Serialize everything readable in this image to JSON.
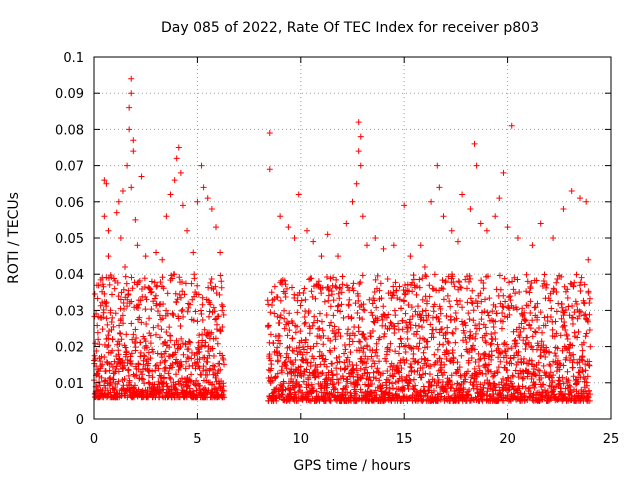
{
  "chart_data": {
    "type": "scatter",
    "title": "Day 085 of 2022, Rate Of TEC Index for receiver p803",
    "xlabel": "GPS time / hours",
    "ylabel": "ROTI / TECUs",
    "xlim": [
      0,
      25
    ],
    "ylim": [
      0,
      0.1
    ],
    "xticks": [
      {
        "value": 0,
        "label": "0"
      },
      {
        "value": 5,
        "label": "5"
      },
      {
        "value": 10,
        "label": "10"
      },
      {
        "value": 15,
        "label": "15"
      },
      {
        "value": 20,
        "label": "20"
      },
      {
        "value": 25,
        "label": "25"
      }
    ],
    "yticks": [
      {
        "value": 0,
        "label": "0"
      },
      {
        "value": 0.01,
        "label": "0.01"
      },
      {
        "value": 0.02,
        "label": "0.02"
      },
      {
        "value": 0.03,
        "label": "0.03"
      },
      {
        "value": 0.04,
        "label": "0.04"
      },
      {
        "value": 0.05,
        "label": "0.05"
      },
      {
        "value": 0.06,
        "label": "0.06"
      },
      {
        "value": 0.07,
        "label": "0.07"
      },
      {
        "value": 0.08,
        "label": "0.08"
      },
      {
        "value": 0.09,
        "label": "0.09"
      },
      {
        "value": 0.1,
        "label": "0.1"
      }
    ],
    "grid": true,
    "marker": "+",
    "marker_color": "#ff0000",
    "series": [
      {
        "points": [
          [
            0.1,
            0.012
          ],
          [
            0.2,
            0.022
          ],
          [
            0.3,
            0.028
          ],
          [
            0.3,
            0.016
          ],
          [
            0.4,
            0.039
          ],
          [
            0.5,
            0.056
          ],
          [
            0.5,
            0.066
          ],
          [
            0.6,
            0.065
          ],
          [
            0.7,
            0.052
          ],
          [
            0.7,
            0.045
          ],
          [
            0.8,
            0.03
          ],
          [
            0.9,
            0.022
          ],
          [
            1.0,
            0.036
          ],
          [
            1.1,
            0.057
          ],
          [
            1.2,
            0.06
          ],
          [
            1.3,
            0.05
          ],
          [
            1.4,
            0.063
          ],
          [
            1.5,
            0.042
          ],
          [
            1.6,
            0.07
          ],
          [
            1.7,
            0.08
          ],
          [
            1.7,
            0.086
          ],
          [
            1.8,
            0.094
          ],
          [
            1.8,
            0.09
          ],
          [
            1.9,
            0.077
          ],
          [
            1.9,
            0.074
          ],
          [
            1.8,
            0.064
          ],
          [
            2.0,
            0.055
          ],
          [
            2.1,
            0.048
          ],
          [
            2.3,
            0.067
          ],
          [
            2.5,
            0.045
          ],
          [
            2.8,
            0.038
          ],
          [
            3.0,
            0.046
          ],
          [
            3.3,
            0.044
          ],
          [
            3.5,
            0.056
          ],
          [
            3.7,
            0.062
          ],
          [
            3.9,
            0.066
          ],
          [
            4.0,
            0.072
          ],
          [
            4.1,
            0.075
          ],
          [
            4.2,
            0.068
          ],
          [
            4.3,
            0.059
          ],
          [
            4.5,
            0.052
          ],
          [
            4.8,
            0.046
          ],
          [
            5.0,
            0.06
          ],
          [
            5.2,
            0.07
          ],
          [
            5.3,
            0.064
          ],
          [
            5.5,
            0.061
          ],
          [
            5.7,
            0.058
          ],
          [
            5.9,
            0.053
          ],
          [
            6.1,
            0.046
          ],
          [
            6.2,
            0.03
          ],
          [
            8.5,
            0.079
          ],
          [
            8.5,
            0.069
          ],
          [
            9.0,
            0.056
          ],
          [
            9.4,
            0.053
          ],
          [
            9.7,
            0.05
          ],
          [
            9.9,
            0.062
          ],
          [
            10.3,
            0.052
          ],
          [
            10.6,
            0.049
          ],
          [
            11.0,
            0.045
          ],
          [
            11.3,
            0.051
          ],
          [
            11.8,
            0.045
          ],
          [
            12.2,
            0.054
          ],
          [
            12.5,
            0.06
          ],
          [
            12.7,
            0.065
          ],
          [
            12.8,
            0.082
          ],
          [
            12.8,
            0.074
          ],
          [
            12.9,
            0.078
          ],
          [
            12.9,
            0.07
          ],
          [
            13.0,
            0.056
          ],
          [
            13.2,
            0.048
          ],
          [
            13.6,
            0.05
          ],
          [
            14.0,
            0.047
          ],
          [
            14.5,
            0.048
          ],
          [
            15.0,
            0.059
          ],
          [
            15.3,
            0.045
          ],
          [
            15.8,
            0.048
          ],
          [
            16.0,
            0.042
          ],
          [
            16.3,
            0.06
          ],
          [
            16.6,
            0.07
          ],
          [
            16.7,
            0.064
          ],
          [
            16.9,
            0.056
          ],
          [
            17.3,
            0.052
          ],
          [
            17.6,
            0.049
          ],
          [
            17.8,
            0.062
          ],
          [
            18.2,
            0.058
          ],
          [
            18.4,
            0.076
          ],
          [
            18.5,
            0.07
          ],
          [
            18.7,
            0.054
          ],
          [
            19.0,
            0.052
          ],
          [
            19.4,
            0.056
          ],
          [
            19.6,
            0.061
          ],
          [
            19.8,
            0.068
          ],
          [
            20.0,
            0.053
          ],
          [
            20.2,
            0.081
          ],
          [
            20.5,
            0.05
          ],
          [
            21.2,
            0.048
          ],
          [
            21.6,
            0.054
          ],
          [
            22.2,
            0.05
          ],
          [
            22.7,
            0.058
          ],
          [
            23.1,
            0.063
          ],
          [
            23.5,
            0.061
          ],
          [
            23.8,
            0.06
          ],
          [
            23.9,
            0.044
          ],
          [
            24.0,
            0.02
          ]
        ]
      }
    ],
    "dense_segments": [
      {
        "x": [
          0.0,
          6.3
        ],
        "y_min": 0.006,
        "y_max": 0.04,
        "y_typical": 0.016
      },
      {
        "x": [
          8.4,
          24.0
        ],
        "y_min": 0.005,
        "y_max": 0.04,
        "y_typical": 0.015
      }
    ]
  }
}
